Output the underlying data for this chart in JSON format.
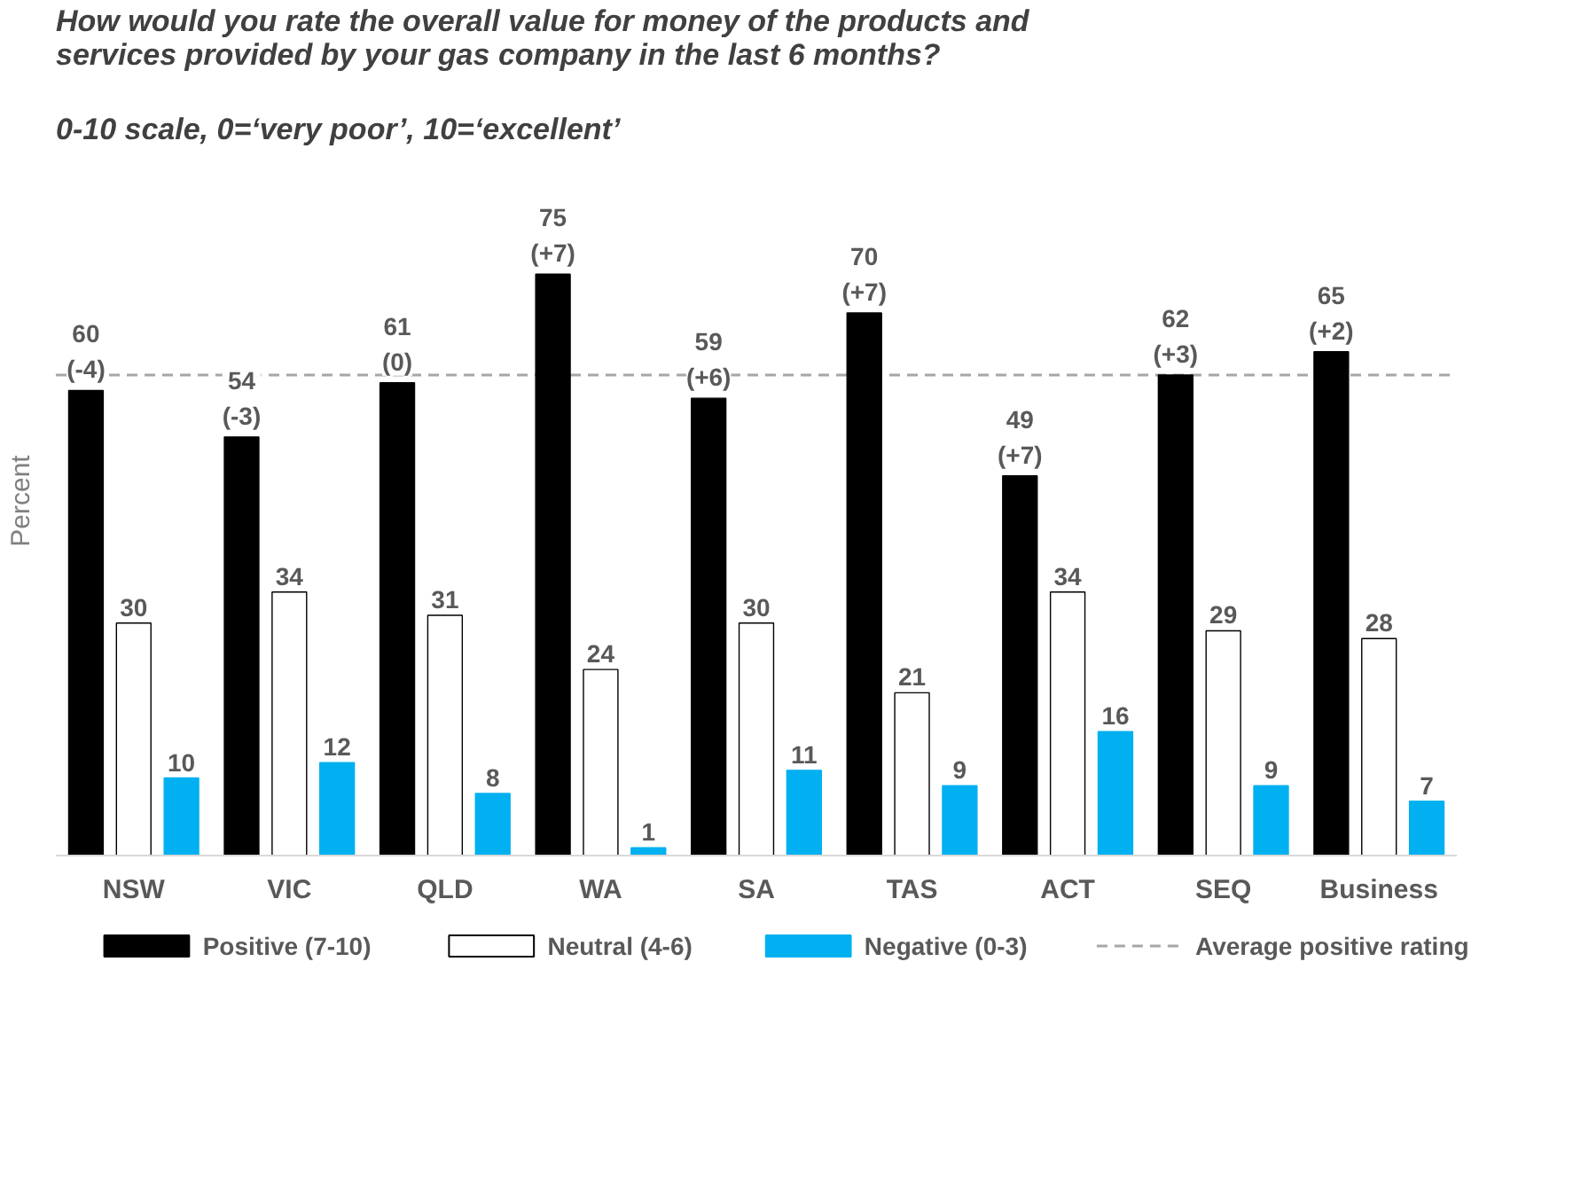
{
  "chart_data": {
    "type": "bar",
    "title": "How would you rate the overall value for money of the products and services provided by your gas company in the last 6 months?",
    "subtitle": "0-10 scale, 0=‘very poor’, 10=‘excellent’",
    "ylabel": "Percent",
    "categories": [
      "NSW",
      "VIC",
      "QLD",
      "WA",
      "SA",
      "TAS",
      "ACT",
      "SEQ",
      "Business"
    ],
    "series": [
      {
        "name": "Positive (7-10)",
        "color": "#000000",
        "values": [
          60,
          54,
          61,
          75,
          59,
          70,
          49,
          62,
          65
        ],
        "value_labels": [
          "60\n(-4)",
          "54\n(-3)",
          "61\n(0)",
          "75\n(+7)",
          "59\n(+6)",
          "70\n(+7)",
          "49\n(+7)",
          "62\n(+3)",
          "65\n(+2)"
        ]
      },
      {
        "name": "Neutral (4-6)",
        "color": "#ffffff",
        "values": [
          30,
          34,
          31,
          24,
          30,
          21,
          34,
          29,
          28
        ]
      },
      {
        "name": "Negative (0-3)",
        "color": "#00b0f0",
        "values": [
          10,
          12,
          8,
          1,
          11,
          9,
          16,
          9,
          7
        ]
      }
    ],
    "ref_lines": [
      {
        "axis": "y",
        "value": 62,
        "label": "Average positive rating",
        "color": "#a6a6a6",
        "line_style": "dashed"
      }
    ],
    "data_labels": true,
    "tick_labels": "x",
    "grid": false,
    "legend": "bottom"
  }
}
